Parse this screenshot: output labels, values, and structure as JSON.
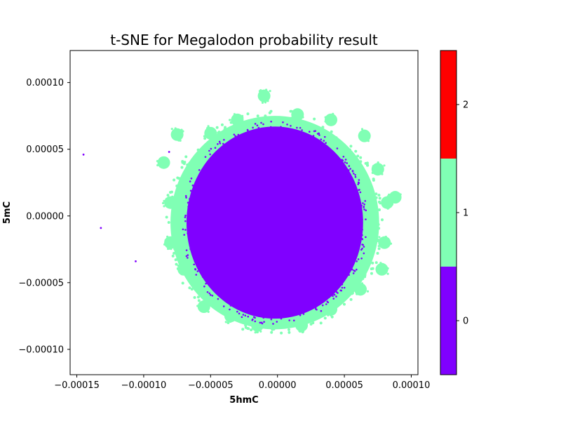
{
  "chart_data": {
    "type": "scatter",
    "title": "t-SNE for Megalodon probability result",
    "xlabel": "5hmC",
    "ylabel": "5mC",
    "xlim": [
      -0.000155,
      0.000105
    ],
    "ylim": [
      -0.000119,
      0.000124
    ],
    "xticks": [
      -0.00015,
      -0.0001,
      -5e-05,
      0.0,
      5e-05,
      0.0001
    ],
    "xtick_labels": [
      "−0.00015",
      "−0.00010",
      "−0.00005",
      "0.00000",
      "0.00005",
      "0.00010"
    ],
    "yticks": [
      -0.0001,
      -5e-05,
      0.0,
      5e-05,
      0.0001
    ],
    "ytick_labels": [
      "−0.00010",
      "−0.00005",
      "0.00000",
      "0.00005",
      "0.00010"
    ],
    "grid": false,
    "colorbar": {
      "ticks": [
        0,
        1,
        2
      ],
      "tick_labels": [
        "0",
        "1",
        "2"
      ],
      "range": [
        -0.5,
        2.5
      ],
      "colors": [
        "#8000ff",
        "#80ffb4",
        "#ff0000"
      ]
    },
    "series": [
      {
        "class": 0,
        "color": "#8000ff",
        "cluster": {
          "center": [
            -2e-06,
            -5e-06
          ],
          "radius_x": 6.6e-05,
          "radius_y": 7.2e-05
        },
        "outliers": [
          [
            -0.000145,
            4.6e-05
          ],
          [
            -0.000132,
            -9e-06
          ],
          [
            -0.000106,
            -3.4e-05
          ],
          [
            -8.1e-05,
            4.8e-05
          ]
        ]
      },
      {
        "class": 1,
        "color": "#80ffb4",
        "cluster": {
          "center": [
            -2e-06,
            -5e-06
          ],
          "radius_x": 7.8e-05,
          "radius_y": 8e-05
        },
        "blobs": [
          [
            -7.5e-05,
            6.1e-05
          ],
          [
            -8.5e-05,
            4e-05
          ],
          [
            -8e-05,
            1e-05
          ],
          [
            -8e-05,
            -2e-05
          ],
          [
            -7e-05,
            -4e-05
          ],
          [
            -5.5e-05,
            -6.8e-05
          ],
          [
            -3.5e-05,
            -7.5e-05
          ],
          [
            -1.5e-05,
            -8.2e-05
          ],
          [
            1.8e-05,
            -8.2e-05
          ],
          [
            4e-05,
            -7e-05
          ],
          [
            6.2e-05,
            -5.5e-05
          ],
          [
            7.8e-05,
            -4e-05
          ],
          [
            8e-05,
            -2e-05
          ],
          [
            8.2e-05,
            1e-05
          ],
          [
            8.8e-05,
            1.4e-05
          ],
          [
            7.5e-05,
            3.5e-05
          ],
          [
            6.5e-05,
            6e-05
          ],
          [
            4e-05,
            7.2e-05
          ],
          [
            1.5e-05,
            7.6e-05
          ],
          [
            -1e-05,
            9e-05
          ],
          [
            -3e-05,
            7.2e-05
          ],
          [
            -5e-05,
            6.2e-05
          ]
        ]
      },
      {
        "class": 2,
        "color": "#ff0000",
        "points": []
      }
    ]
  }
}
